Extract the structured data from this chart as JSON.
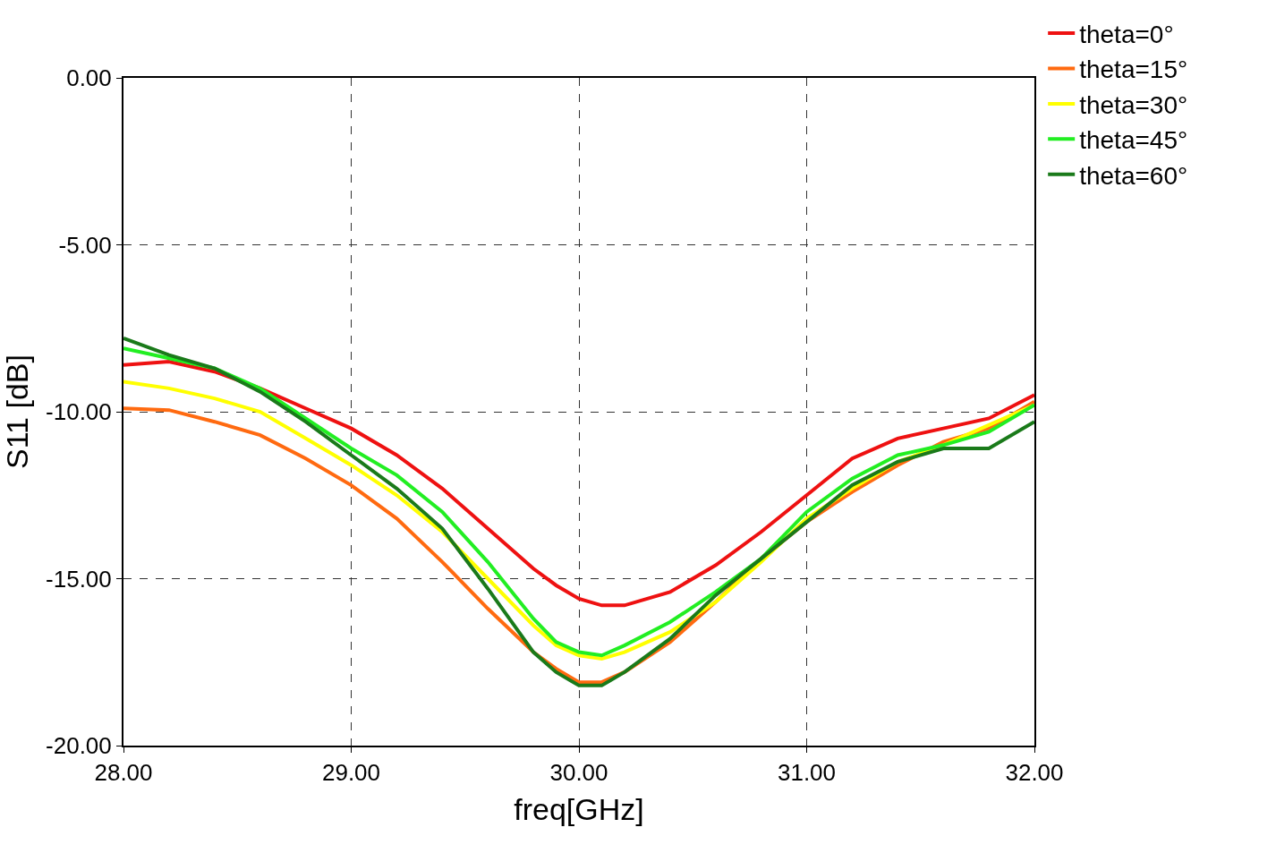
{
  "chart_data": {
    "type": "line",
    "xlabel": "freq[GHz]",
    "ylabel": "S11 [dB]",
    "x": [
      28.0,
      28.2,
      28.4,
      28.6,
      28.8,
      29.0,
      29.2,
      29.4,
      29.6,
      29.8,
      29.9,
      30.0,
      30.1,
      30.2,
      30.4,
      30.6,
      30.8,
      31.0,
      31.2,
      31.4,
      31.6,
      31.8,
      32.0
    ],
    "series": [
      {
        "name": "theta=0°",
        "color": "#ee1111",
        "values": [
          -8.6,
          -8.5,
          -8.8,
          -9.3,
          -9.9,
          -10.5,
          -11.3,
          -12.3,
          -13.5,
          -14.7,
          -15.2,
          -15.6,
          -15.8,
          -15.8,
          -15.4,
          -14.6,
          -13.6,
          -12.5,
          -11.4,
          -10.8,
          -10.5,
          -10.2,
          -9.5
        ]
      },
      {
        "name": "theta=15°",
        "color": "#ff6a10",
        "values": [
          -9.9,
          -9.95,
          -10.3,
          -10.7,
          -11.4,
          -12.2,
          -13.2,
          -14.5,
          -15.9,
          -17.2,
          -17.7,
          -18.1,
          -18.1,
          -17.8,
          -16.9,
          -15.7,
          -14.4,
          -13.3,
          -12.4,
          -11.6,
          -10.9,
          -10.5,
          -9.7
        ]
      },
      {
        "name": "theta=30°",
        "color": "#ffff00",
        "values": [
          -9.1,
          -9.3,
          -9.6,
          -10.0,
          -10.8,
          -11.6,
          -12.5,
          -13.6,
          -15.0,
          -16.4,
          -17.0,
          -17.3,
          -17.4,
          -17.2,
          -16.6,
          -15.7,
          -14.5,
          -13.2,
          -12.3,
          -11.5,
          -11.0,
          -10.4,
          -9.8
        ]
      },
      {
        "name": "theta=45°",
        "color": "#22ee22",
        "values": [
          -8.1,
          -8.4,
          -8.7,
          -9.3,
          -10.2,
          -11.1,
          -11.9,
          -13.0,
          -14.5,
          -16.2,
          -16.9,
          -17.2,
          -17.3,
          -17.0,
          -16.3,
          -15.4,
          -14.4,
          -13.0,
          -12.0,
          -11.3,
          -11.0,
          -10.6,
          -9.8
        ]
      },
      {
        "name": "theta=60°",
        "color": "#1a7a1a",
        "values": [
          -7.8,
          -8.3,
          -8.7,
          -9.4,
          -10.3,
          -11.3,
          -12.3,
          -13.5,
          -15.3,
          -17.2,
          -17.8,
          -18.2,
          -18.2,
          -17.8,
          -16.8,
          -15.5,
          -14.4,
          -13.3,
          -12.2,
          -11.5,
          -11.1,
          -11.1,
          -10.3
        ]
      }
    ],
    "xlim": [
      28,
      32
    ],
    "xticks": [
      {
        "value": 28,
        "label": "28.00"
      },
      {
        "value": 29,
        "label": "29.00"
      },
      {
        "value": 30,
        "label": "30.00"
      },
      {
        "value": 31,
        "label": "31.00"
      },
      {
        "value": 32,
        "label": "32.00"
      }
    ],
    "ylim": [
      -20,
      0
    ],
    "yticks": [
      {
        "value": -20,
        "label": "-20.00"
      },
      {
        "value": -15,
        "label": "-15.00"
      },
      {
        "value": -10,
        "label": "-10.00"
      },
      {
        "value": -5,
        "label": "-5.00"
      },
      {
        "value": 0,
        "label": "0.00"
      }
    ],
    "grid": true,
    "legend": "top right",
    "marker": "none",
    "line_style": "solid"
  }
}
